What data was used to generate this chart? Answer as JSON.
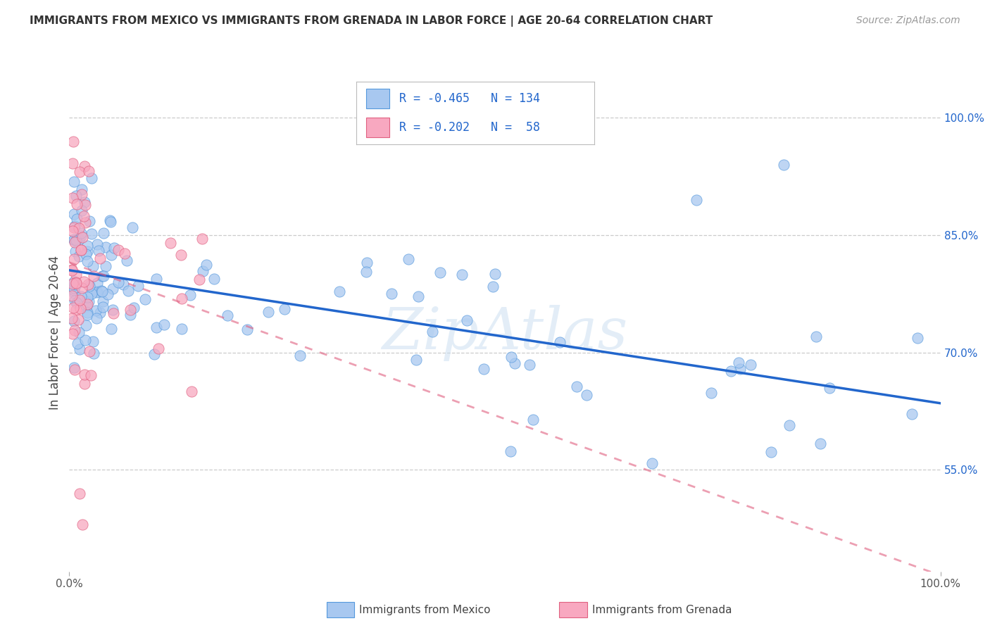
{
  "title": "IMMIGRANTS FROM MEXICO VS IMMIGRANTS FROM GRENADA IN LABOR FORCE | AGE 20-64 CORRELATION CHART",
  "source": "Source: ZipAtlas.com",
  "ylabel": "In Labor Force | Age 20-64",
  "xlim": [
    0.0,
    1.0
  ],
  "ylim": [
    0.42,
    1.03
  ],
  "x_tick_labels_left": "0.0%",
  "x_tick_labels_right": "100.0%",
  "y_tick_labels": [
    "55.0%",
    "70.0%",
    "85.0%",
    "100.0%"
  ],
  "y_tick_values": [
    0.55,
    0.7,
    0.85,
    1.0
  ],
  "background_color": "#ffffff",
  "color_mexico": "#a8c8f0",
  "color_mexico_edge": "#5599dd",
  "color_grenada": "#f8a8c0",
  "color_grenada_edge": "#e06080",
  "trendline_mexico_color": "#2266cc",
  "trendline_grenada_color": "#e06080",
  "watermark": "ZipAtlas",
  "legend_text_color": "#2266cc",
  "legend_R1": "-0.465",
  "legend_N1": "134",
  "legend_R2": "-0.202",
  "legend_N2": " 58",
  "trendline_mex_x0": 0.0,
  "trendline_mex_y0": 0.805,
  "trendline_mex_x1": 1.0,
  "trendline_mex_y1": 0.635,
  "trendline_gren_x0": 0.0,
  "trendline_gren_y0": 0.815,
  "trendline_gren_x1": 1.0,
  "trendline_gren_y1": 0.415
}
